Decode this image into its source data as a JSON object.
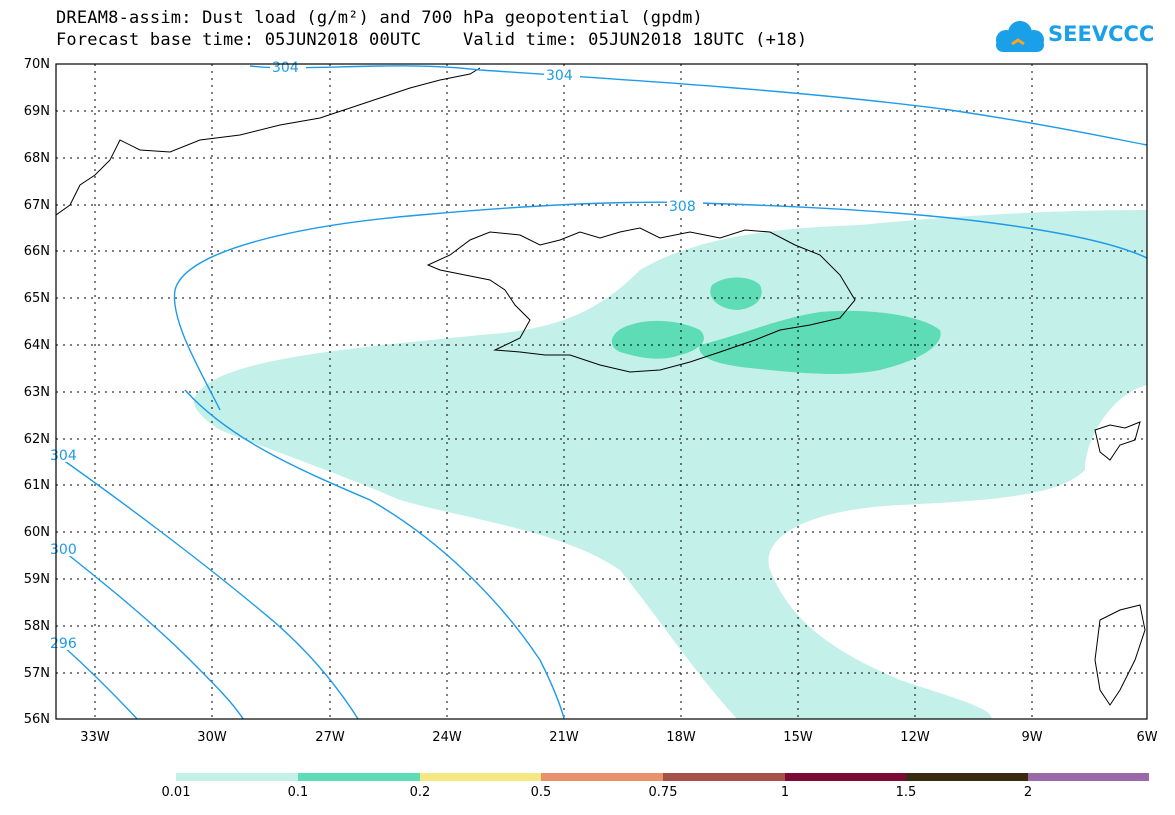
{
  "title": {
    "line1": "DREAM8-assim: Dust load (g/m²) and 700 hPa geopotential (gpdm)",
    "line2": "Forecast base time: 05JUN2018 00UTC    Valid time: 05JUN2018 18UTC (+18)"
  },
  "logo": {
    "text": "SEEVCCC",
    "icon": "cloud-icon",
    "color": "#1aa0e8"
  },
  "map": {
    "lat_labels": [
      "70N",
      "69N",
      "68N",
      "67N",
      "66N",
      "65N",
      "64N",
      "63N",
      "62N",
      "61N",
      "60N",
      "59N",
      "58N",
      "57N",
      "56N"
    ],
    "lon_labels": [
      "33W",
      "30W",
      "27W",
      "24W",
      "21W",
      "18W",
      "15W",
      "12W",
      "9W",
      "6W"
    ],
    "contour_labels": [
      "304",
      "304",
      "308",
      "304",
      "300",
      "296"
    ],
    "contour_color": "#1e9be8",
    "fill_light": "#c4f0ea",
    "fill_mid": "#5ddcb5"
  },
  "colorbar": {
    "labels": [
      "0.01",
      "0.1",
      "0.2",
      "0.5",
      "0.75",
      "1",
      "1.5",
      "2"
    ],
    "colors": [
      "#c4f0ea",
      "#5ddcb5",
      "#f3e881",
      "#e8916a",
      "#a6504a",
      "#7c0a35",
      "#3a2a10",
      "#9a6aa8"
    ]
  }
}
